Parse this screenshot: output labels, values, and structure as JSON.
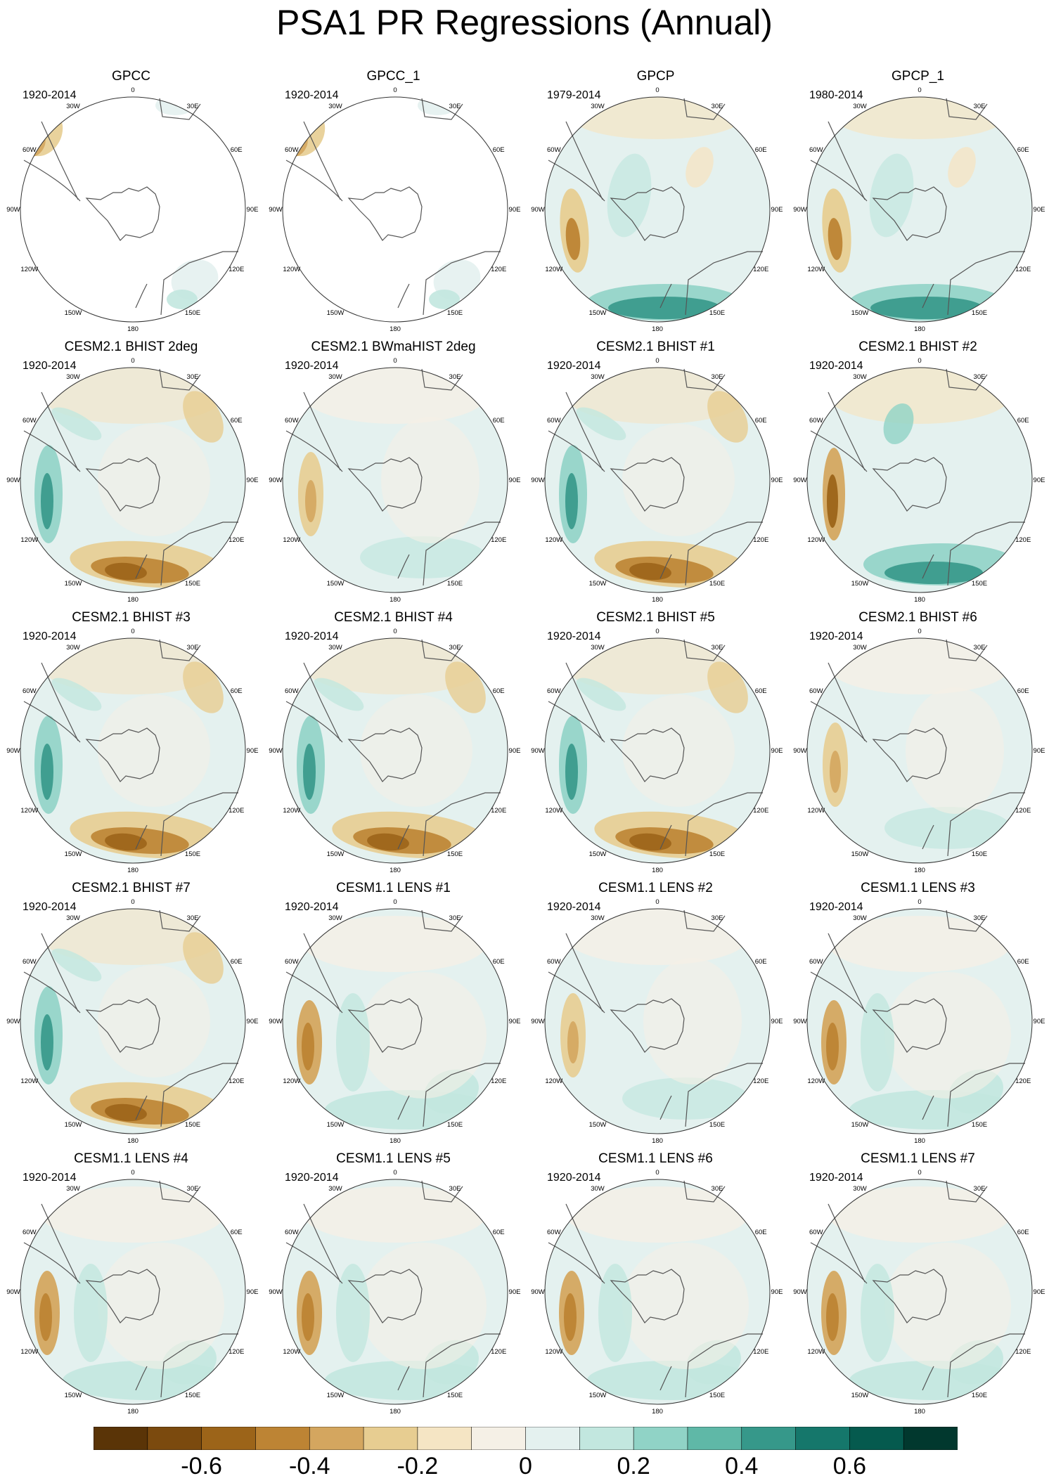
{
  "title": "PSA1 PR Regressions (Annual)",
  "panels": [
    {
      "title": "GPCC",
      "period": "1920-2014",
      "pattern": "obs_land"
    },
    {
      "title": "GPCC_1",
      "period": "1920-2014",
      "pattern": "obs_land"
    },
    {
      "title": "GPCP",
      "period": "1979-2014",
      "pattern": "obs_strong"
    },
    {
      "title": "GPCP_1",
      "period": "1980-2014",
      "pattern": "obs_strong"
    },
    {
      "title": "CESM2.1 BHIST 2deg",
      "period": "1920-2014",
      "pattern": "brown_south"
    },
    {
      "title": "CESM2.1 BWmaHIST 2deg",
      "period": "1920-2014",
      "pattern": "weak"
    },
    {
      "title": "CESM2.1 BHIST #1",
      "period": "1920-2014",
      "pattern": "brown_south"
    },
    {
      "title": "CESM2.1 BHIST #2",
      "period": "1920-2014",
      "pattern": "teal_south"
    },
    {
      "title": "CESM2.1 BHIST #3",
      "period": "1920-2014",
      "pattern": "brown_south"
    },
    {
      "title": "CESM2.1 BHIST #4",
      "period": "1920-2014",
      "pattern": "brown_south"
    },
    {
      "title": "CESM2.1 BHIST #5",
      "period": "1920-2014",
      "pattern": "brown_south"
    },
    {
      "title": "CESM2.1 BHIST #6",
      "period": "1920-2014",
      "pattern": "weak"
    },
    {
      "title": "CESM2.1 BHIST #7",
      "period": "1920-2014",
      "pattern": "brown_south"
    },
    {
      "title": "CESM1.1 LENS #1",
      "period": "1920-2014",
      "pattern": "lens"
    },
    {
      "title": "CESM1.1 LENS #2",
      "period": "1920-2014",
      "pattern": "weak"
    },
    {
      "title": "CESM1.1 LENS #3",
      "period": "1920-2014",
      "pattern": "lens"
    },
    {
      "title": "CESM1.1 LENS #4",
      "period": "1920-2014",
      "pattern": "lens"
    },
    {
      "title": "CESM1.1 LENS #5",
      "period": "1920-2014",
      "pattern": "lens"
    },
    {
      "title": "CESM1.1 LENS #6",
      "period": "1920-2014",
      "pattern": "lens"
    },
    {
      "title": "CESM1.1 LENS #7",
      "period": "1920-2014",
      "pattern": "lens"
    }
  ],
  "longitude_labels": [
    "0",
    "30E",
    "60E",
    "90E",
    "120E",
    "150E",
    "180",
    "150W",
    "120W",
    "90W",
    "60W",
    "30W"
  ],
  "colorbar": {
    "colors": [
      "#5a3407",
      "#7b4a0e",
      "#9c6419",
      "#bd8434",
      "#d4a65f",
      "#e7cd91",
      "#f5e5c4",
      "#f5f0e6",
      "#e4f1ef",
      "#c2e7df",
      "#90d3c6",
      "#5fb8a7",
      "#36988a",
      "#15776b",
      "#055a4e",
      "#01382e"
    ],
    "tick_labels": [
      "-0.6",
      "-0.4",
      "-0.2",
      "0",
      "0.2",
      "0.4",
      "0.6"
    ],
    "tick_values": [
      -0.6,
      -0.4,
      -0.2,
      0,
      0.2,
      0.4,
      0.6
    ],
    "range": [
      -0.8,
      0.8
    ]
  }
}
